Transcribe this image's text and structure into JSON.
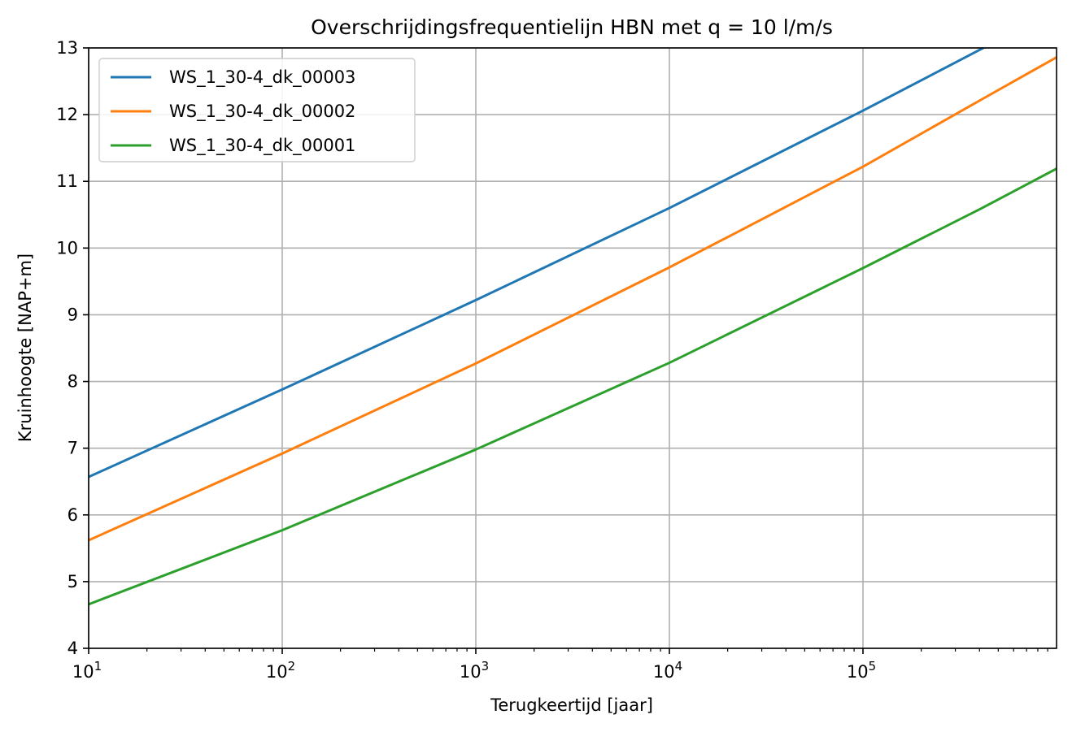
{
  "chart_data": {
    "type": "line",
    "title": "Overschrijdingsfrequentielijn HBN met q = 10 l/m/s",
    "xlabel": "Terugkeertijd [jaar]",
    "ylabel": "Kruinhoogte [NAP+m]",
    "xscale": "log",
    "xlim": [
      10,
      1000000
    ],
    "ylim": [
      4,
      13
    ],
    "grid": true,
    "legend_position": "upper-left",
    "x_ticks": [
      {
        "value": 10,
        "base": "10",
        "exp": "1"
      },
      {
        "value": 100,
        "base": "10",
        "exp": "2"
      },
      {
        "value": 1000,
        "base": "10",
        "exp": "3"
      },
      {
        "value": 10000,
        "base": "10",
        "exp": "4"
      },
      {
        "value": 100000,
        "base": "10",
        "exp": "5"
      }
    ],
    "y_ticks": [
      "4",
      "5",
      "6",
      "7",
      "8",
      "9",
      "10",
      "11",
      "12",
      "13"
    ],
    "x": [
      10,
      100,
      1000,
      10000,
      100000,
      400000,
      1000000
    ],
    "series": [
      {
        "name": "WS_1_30-4_dk_00003",
        "color": "#1f77b4",
        "values": [
          6.57,
          7.88,
          9.22,
          10.6,
          12.06,
          12.97,
          null
        ]
      },
      {
        "name": "WS_1_30-4_dk_00002",
        "color": "#ff7f0e",
        "values": [
          5.62,
          6.92,
          8.27,
          9.71,
          11.22,
          12.21,
          12.86
        ]
      },
      {
        "name": "WS_1_30-4_dk_00001",
        "color": "#2ca02c",
        "values": [
          4.66,
          5.77,
          6.98,
          8.28,
          9.7,
          10.58,
          11.19
        ]
      }
    ]
  }
}
